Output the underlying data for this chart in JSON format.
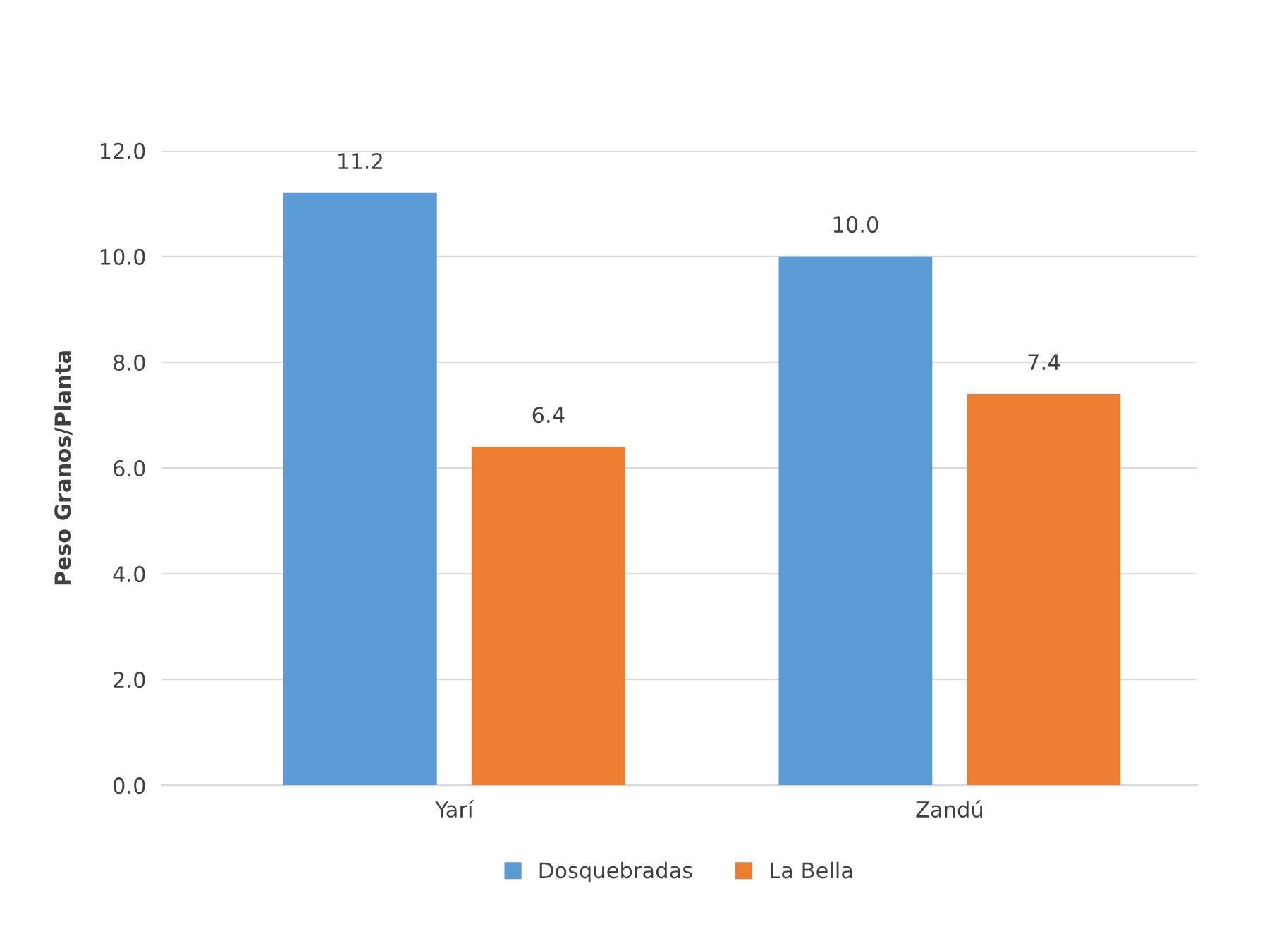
{
  "chart_data": {
    "type": "bar",
    "ylabel": "Peso Granos/Planta",
    "categories": [
      "Yarí",
      "Zandú"
    ],
    "series": [
      {
        "name": "Dosquebradas",
        "color": "#5b9bd5",
        "values": [
          11.2,
          10.0
        ],
        "value_labels": [
          "11.2",
          "10.0"
        ]
      },
      {
        "name": "La Bella",
        "color": "#ed7d31",
        "values": [
          6.4,
          7.4
        ],
        "value_labels": [
          "6.4",
          "7.4"
        ]
      }
    ],
    "ylim": [
      0,
      12
    ],
    "yticks": [
      {
        "value": 0,
        "label": "0.0"
      },
      {
        "value": 2,
        "label": "2.0"
      },
      {
        "value": 4,
        "label": "4.0"
      },
      {
        "value": 6,
        "label": "6.0"
      },
      {
        "value": 8,
        "label": "8.0"
      },
      {
        "value": 10,
        "label": "10.0"
      },
      {
        "value": 12,
        "label": "12.0"
      }
    ],
    "grid": "y",
    "legend": "bottom"
  }
}
